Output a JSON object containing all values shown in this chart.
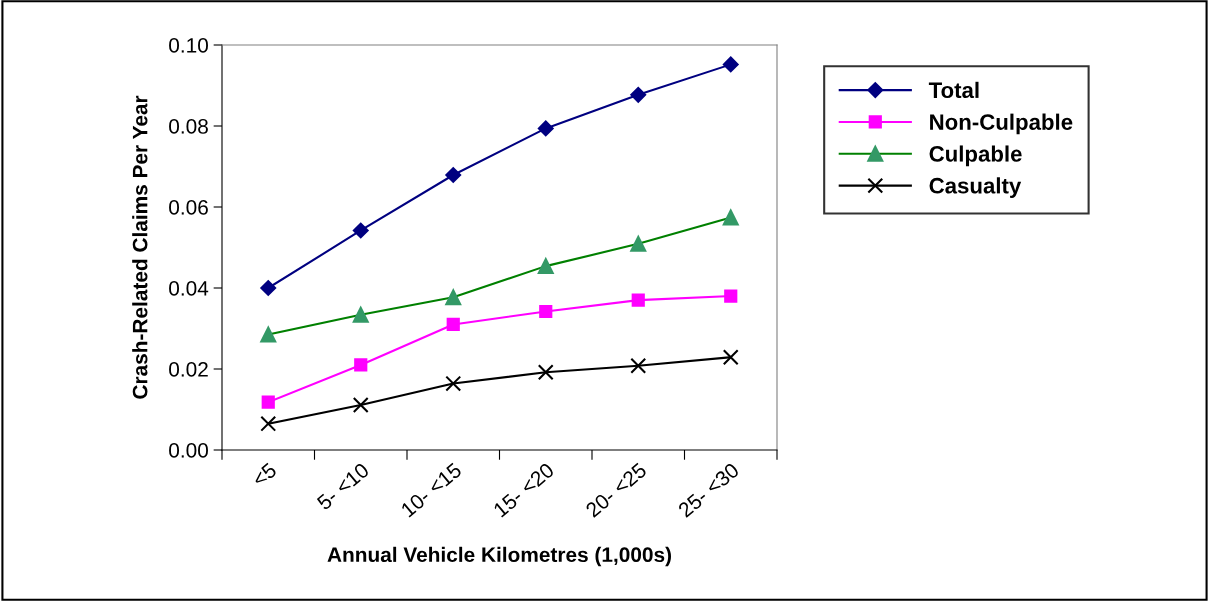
{
  "chart_data": {
    "type": "line",
    "xlabel": "Annual Vehicle Kilometres (1,000s)",
    "ylabel": "Crash-Related Claims Per Year",
    "categories": [
      "<5",
      "5- <10",
      "10- <15",
      "15- <20",
      "20- <25",
      "25- <30"
    ],
    "series": [
      {
        "name": "Total",
        "color": "#000080",
        "marker": "diamond",
        "values": [
          0.04,
          0.0542,
          0.0679,
          0.0794,
          0.0877,
          0.0952
        ]
      },
      {
        "name": "Non-Culpable",
        "color": "#ff00ff",
        "marker": "square",
        "values": [
          0.0118,
          0.021,
          0.031,
          0.0342,
          0.037,
          0.038
        ]
      },
      {
        "name": "Culpable",
        "color": "#008000",
        "marker": "triangle",
        "values": [
          0.0285,
          0.0334,
          0.0377,
          0.0454,
          0.0509,
          0.0574
        ]
      },
      {
        "name": "Casualty",
        "color": "#000000",
        "marker": "cross",
        "values": [
          0.0065,
          0.0111,
          0.0164,
          0.0192,
          0.0208,
          0.0229
        ]
      }
    ],
    "ylim": [
      0,
      0.1
    ],
    "yticks": [
      {
        "value": 0,
        "label": "0.00"
      },
      {
        "value": 0.02,
        "label": "0.02"
      },
      {
        "value": 0.04,
        "label": "0.04"
      },
      {
        "value": 0.06,
        "label": "0.06"
      },
      {
        "value": 0.08,
        "label": "0.08"
      },
      {
        "value": 0.1,
        "label": "0.10"
      }
    ],
    "grid": false,
    "legend": "top right",
    "line_style": "solid"
  }
}
